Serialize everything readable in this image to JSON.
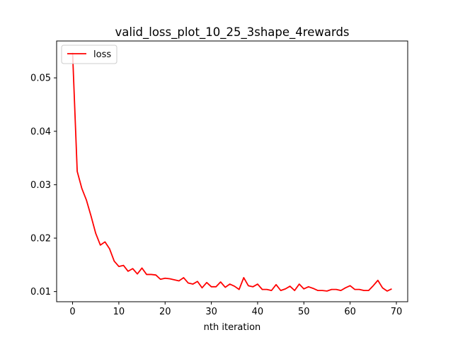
{
  "chart_data": {
    "type": "line",
    "title": "valid_loss_plot_10_25_3shape_4rewards",
    "xlabel": "nth iteration",
    "ylabel": "",
    "xlim": [
      -3.45,
      72.45
    ],
    "ylim": [
      0.0081,
      0.0569
    ],
    "xticks": [
      0,
      10,
      20,
      30,
      40,
      50,
      60,
      70
    ],
    "xtick_labels": [
      "0",
      "10",
      "20",
      "30",
      "40",
      "50",
      "60",
      "70"
    ],
    "yticks": [
      0.01,
      0.02,
      0.03,
      0.04,
      0.05
    ],
    "ytick_labels": [
      "0.01",
      "0.02",
      "0.03",
      "0.04",
      "0.05"
    ],
    "grid": false,
    "legend": {
      "position": "top-left"
    },
    "series": [
      {
        "name": "loss",
        "color": "#ff0000",
        "x": [
          0,
          1,
          2,
          3,
          4,
          5,
          6,
          7,
          8,
          9,
          10,
          11,
          12,
          13,
          14,
          15,
          16,
          17,
          18,
          19,
          20,
          21,
          22,
          23,
          24,
          25,
          26,
          27,
          28,
          29,
          30,
          31,
          32,
          33,
          34,
          35,
          36,
          37,
          38,
          39,
          40,
          41,
          42,
          43,
          44,
          45,
          46,
          47,
          48,
          49,
          50,
          51,
          52,
          53,
          54,
          55,
          56,
          57,
          58,
          59,
          60,
          61,
          62,
          63,
          64,
          65,
          66,
          67,
          68,
          69
        ],
        "y": [
          0.0547,
          0.0325,
          0.0293,
          0.0271,
          0.0241,
          0.0209,
          0.0187,
          0.0193,
          0.018,
          0.0157,
          0.0147,
          0.0149,
          0.0138,
          0.0143,
          0.0133,
          0.0144,
          0.0132,
          0.0132,
          0.0131,
          0.0123,
          0.0125,
          0.0124,
          0.0122,
          0.012,
          0.0126,
          0.0116,
          0.0114,
          0.0119,
          0.0107,
          0.0117,
          0.0109,
          0.0109,
          0.0118,
          0.0108,
          0.0114,
          0.011,
          0.0104,
          0.0126,
          0.0111,
          0.0109,
          0.0114,
          0.0104,
          0.0104,
          0.0102,
          0.0113,
          0.0102,
          0.0105,
          0.011,
          0.0102,
          0.0114,
          0.0105,
          0.0109,
          0.0106,
          0.0102,
          0.0102,
          0.0101,
          0.0104,
          0.0104,
          0.0102,
          0.0107,
          0.0111,
          0.0104,
          0.0104,
          0.0102,
          0.0102,
          0.0111,
          0.0121,
          0.0107,
          0.0101,
          0.0105
        ]
      }
    ]
  }
}
